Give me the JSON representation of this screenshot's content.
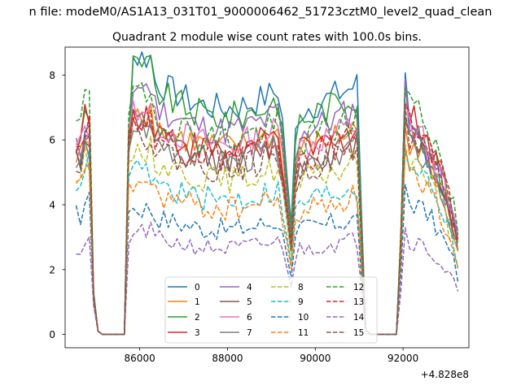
{
  "chart_data": {
    "type": "line",
    "suptitle": "n file: modeM0/AS1A13_031T01_9000006462_51723cztM0_level2_quad_clean",
    "title": "Quadrant 2 module wise count rates with 100.0s bins.",
    "xlabel": "",
    "ylabel": "",
    "x_offset_label": "+4.828e8",
    "xlim": [
      84300,
      93500
    ],
    "ylim": [
      -0.41,
      8.86
    ],
    "xticks": [
      "86000",
      "88000",
      "90000",
      "92000"
    ],
    "xtick_values": [
      86000,
      88000,
      90000,
      92000
    ],
    "yticks": [
      "0",
      "2",
      "4",
      "6",
      "8"
    ],
    "ytick_values": [
      0,
      2,
      4,
      6,
      8
    ],
    "grid": false,
    "legend_position": "lower center",
    "legend_columns": 4,
    "x_start": 84550,
    "x_step": 100,
    "series": [
      {
        "name": "0",
        "color": "#1f77b4",
        "dash": "solid",
        "low": 6.2,
        "mid": 7.75,
        "bump": 0.6
      },
      {
        "name": "1",
        "color": "#ff7f0e",
        "dash": "solid",
        "low": 6.0,
        "mid": 6.4,
        "bump": 0.0
      },
      {
        "name": "2",
        "color": "#2ca02c",
        "dash": "solid",
        "low": 6.5,
        "mid": 7.45,
        "bump": 0.5
      },
      {
        "name": "3",
        "color": "#d62728",
        "dash": "solid",
        "low": 6.7,
        "mid": 6.3,
        "bump": 0.0
      },
      {
        "name": "4",
        "color": "#9467bd",
        "dash": "solid",
        "low": 6.3,
        "mid": 7.0,
        "bump": 0.3
      },
      {
        "name": "5",
        "color": "#8c564b",
        "dash": "solid",
        "low": 6.1,
        "mid": 6.0,
        "bump": 0.0
      },
      {
        "name": "6",
        "color": "#e377c2",
        "dash": "solid",
        "low": 6.4,
        "mid": 6.5,
        "bump": 0.0
      },
      {
        "name": "7",
        "color": "#7f7f7f",
        "dash": "solid",
        "low": 5.8,
        "mid": 5.9,
        "bump": 0.0
      },
      {
        "name": "8",
        "color": "#bcbd22",
        "dash": "dashed",
        "low": 5.4,
        "mid": 5.3,
        "bump": 0.0
      },
      {
        "name": "9",
        "color": "#17becf",
        "dash": "dashed",
        "low": 5.3,
        "mid": 4.6,
        "bump": 0.0
      },
      {
        "name": "10",
        "color": "#1f77b4",
        "dash": "dashed",
        "low": 4.1,
        "mid": 3.6,
        "bump": 0.0
      },
      {
        "name": "11",
        "color": "#ff7f0e",
        "dash": "dashed",
        "low": 5.0,
        "mid": 4.3,
        "bump": 0.0
      },
      {
        "name": "12",
        "color": "#2ca02c",
        "dash": "dashed",
        "low": 7.2,
        "mid": 6.7,
        "bump": 0.0
      },
      {
        "name": "13",
        "color": "#d62728",
        "dash": "dashed",
        "low": 6.5,
        "mid": 6.1,
        "bump": 0.0
      },
      {
        "name": "14",
        "color": "#9467bd",
        "dash": "dashed",
        "low": 2.9,
        "mid": 2.95,
        "bump": 0.0
      },
      {
        "name": "15",
        "color": "#8c564b",
        "dash": "dashed",
        "low": 6.0,
        "mid": 5.7,
        "bump": 0.0
      }
    ]
  }
}
